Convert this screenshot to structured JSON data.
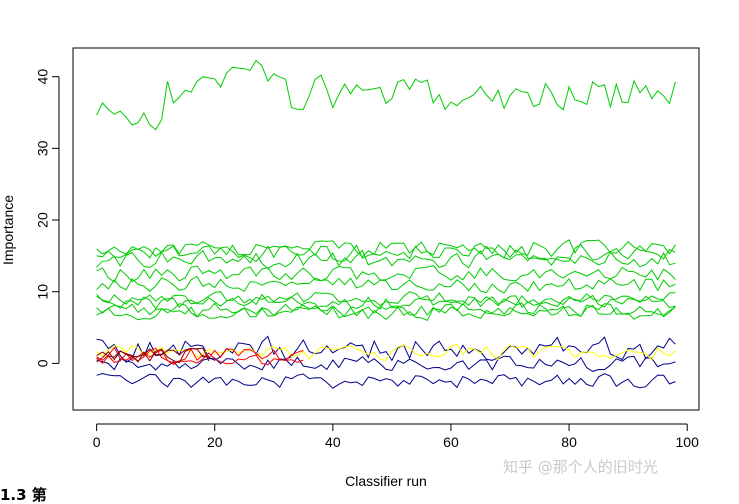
{
  "chart_data": {
    "type": "line",
    "title": "",
    "xlabel": "Classifier run",
    "ylabel": "Importance",
    "xlim": [
      -4,
      102
    ],
    "ylim": [
      -6.5,
      44
    ],
    "x_ticks": [
      0,
      20,
      40,
      60,
      80,
      100
    ],
    "y_ticks": [
      0,
      10,
      20,
      30,
      40
    ],
    "grid": false,
    "legend": "none",
    "series_groups": [
      {
        "color": "#00cc00",
        "count": 10,
        "runs": 99,
        "base": [
          37.5,
          16.0,
          15.5,
          14.5,
          12.5,
          11.0,
          9.0,
          8.5,
          7.5,
          7.0
        ],
        "spread": [
          2.2,
          1.1,
          1.1,
          1.1,
          1.0,
          1.0,
          0.9,
          0.9,
          0.9,
          0.9
        ]
      },
      {
        "color": "#00008b",
        "count": 3,
        "runs": 99,
        "base": [
          2.0,
          0.0,
          -2.5
        ],
        "spread": [
          1.6,
          1.0,
          0.9
        ]
      },
      {
        "color": "#ffff00",
        "count": 1,
        "runs": 99,
        "base": [
          1.5
        ],
        "spread": [
          1.0
        ]
      },
      {
        "color": "#ff0000",
        "count": 2,
        "runs": 36,
        "base": [
          1.2,
          0.8
        ],
        "spread": [
          1.0,
          0.9
        ]
      },
      {
        "color": "#8b0000",
        "count": 2,
        "runs": 20,
        "base": [
          1.0,
          1.6
        ],
        "spread": [
          1.0,
          0.9
        ]
      }
    ]
  },
  "watermark": "知乎 @那个人的旧时光",
  "cutoff_text": "1.3 第"
}
